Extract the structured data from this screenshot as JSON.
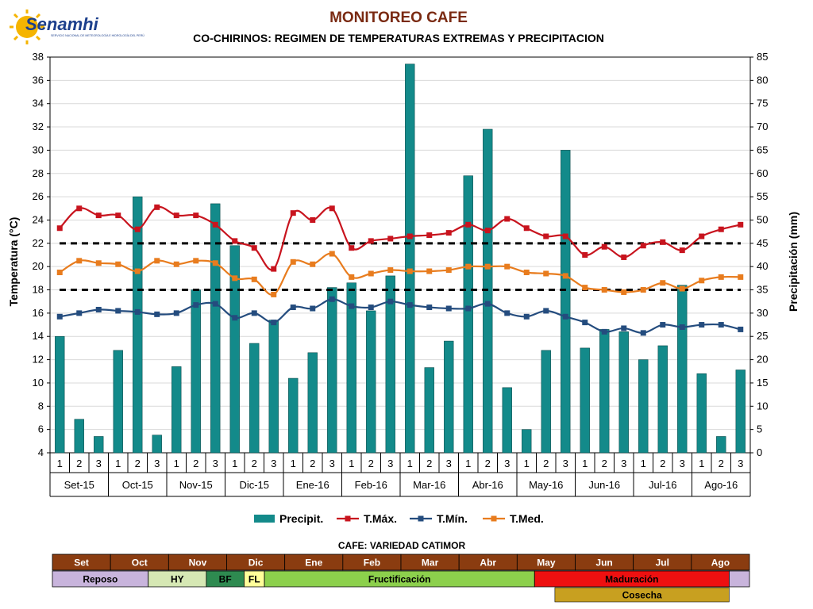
{
  "header": {
    "logo_text": "Senamhi",
    "logo_subtext": "SERVICIO NACIONAL DE METEOROLOGÍA E HIDROLOGÍA DEL PERÚ",
    "title": "MONITOREO CAFE",
    "subtitle": "CO-CHIRINOS: REGIMEN DE TEMPERATURAS EXTREMAS Y PRECIPITACION"
  },
  "colors": {
    "precip": "#138a8a",
    "tmax": "#c8141e",
    "tmin": "#244c7e",
    "tmed": "#e87c1e",
    "threshold": "#000000",
    "title": "#7a2a12"
  },
  "chart_data": {
    "type": "bar",
    "title": "CO-CHIRINOS: REGIMEN DE TEMPERATURAS EXTREMAS Y PRECIPITACION",
    "xlabel": "",
    "ylabel": "Temperatura (°C)",
    "y2label": "Precipitación (mm)",
    "ylim": [
      4,
      38
    ],
    "y2lim": [
      0,
      85
    ],
    "yticks": [
      4,
      6,
      8,
      10,
      12,
      14,
      16,
      18,
      20,
      22,
      24,
      26,
      28,
      30,
      32,
      34,
      36,
      38
    ],
    "y2ticks": [
      0,
      5,
      10,
      15,
      20,
      25,
      30,
      35,
      40,
      45,
      50,
      55,
      60,
      65,
      70,
      75,
      80,
      85
    ],
    "grid": true,
    "legend_position": "bottom",
    "months": [
      "Set-15",
      "Oct-15",
      "Nov-15",
      "Dic-15",
      "Ene-16",
      "Feb-16",
      "Mar-16",
      "Abr-16",
      "May-16",
      "Jun-16",
      "Jul-16",
      "Ago-16"
    ],
    "dekads": [
      "1",
      "2",
      "3"
    ],
    "thresholds": [
      22,
      18
    ],
    "series": [
      {
        "name": "Precipit.",
        "type": "bar",
        "axis": "right",
        "values": [
          25,
          7.2,
          3.5,
          22,
          55,
          3.8,
          18.5,
          35,
          53.5,
          44.5,
          23.5,
          28.5,
          16,
          21.5,
          35.5,
          36.5,
          30.5,
          38,
          83.5,
          18.3,
          24,
          59.5,
          69.5,
          14,
          5,
          22,
          65,
          22.5,
          26.5,
          26,
          20,
          23,
          36,
          17,
          3.5,
          17.8
        ]
      },
      {
        "name": "T.Máx.",
        "type": "line",
        "axis": "left",
        "values": [
          23.3,
          25,
          24.4,
          24.4,
          23.2,
          25.1,
          24.4,
          24.4,
          23.6,
          22.2,
          21.6,
          19.8,
          24.6,
          24.0,
          25.0,
          21.6,
          22.2,
          22.4,
          22.6,
          22.7,
          22.9,
          23.6,
          23.1,
          24.1,
          23.3,
          22.6,
          22.6,
          21.0,
          21.7,
          20.8,
          21.8,
          22.1,
          21.4,
          22.6,
          23.2,
          23.6
        ]
      },
      {
        "name": "T.Mín.",
        "type": "line",
        "axis": "left",
        "values": [
          15.7,
          16.0,
          16.3,
          16.2,
          16.1,
          15.9,
          16.0,
          16.7,
          16.8,
          15.6,
          16.0,
          15.2,
          16.5,
          16.4,
          17.2,
          16.6,
          16.5,
          17.0,
          16.7,
          16.5,
          16.4,
          16.4,
          16.8,
          16.0,
          15.7,
          16.2,
          15.7,
          15.2,
          14.4,
          14.7,
          14.3,
          15.0,
          14.8,
          15.0,
          15.0,
          14.6
        ]
      },
      {
        "name": "T.Med.",
        "type": "line",
        "axis": "left",
        "values": [
          19.5,
          20.5,
          20.3,
          20.2,
          19.6,
          20.5,
          20.2,
          20.5,
          20.3,
          19.0,
          18.9,
          17.6,
          20.4,
          20.2,
          21.1,
          19.1,
          19.4,
          19.7,
          19.6,
          19.6,
          19.7,
          20.0,
          20.0,
          20.0,
          19.5,
          19.4,
          19.2,
          18.2,
          18.0,
          17.8,
          18.0,
          18.6,
          18.1,
          18.8,
          19.1,
          19.1
        ]
      }
    ]
  },
  "phenology": {
    "title": "CAFE: VARIEDAD CATIMOR",
    "months": [
      "Set",
      "Oct",
      "Nov",
      "Dic",
      "Ene",
      "Feb",
      "Mar",
      "Abr",
      "May",
      "Jun",
      "Jul",
      "Ago"
    ],
    "month_row_color": "#8a3c10",
    "stages": [
      {
        "label": "Reposo",
        "start_month": 0,
        "end_month": 1.65,
        "color": "#c8b4dc"
      },
      {
        "label": "HY",
        "start_month": 1.65,
        "end_month": 2.65,
        "color": "#d6e8b4"
      },
      {
        "label": "BF",
        "start_month": 2.65,
        "end_month": 3.3,
        "color": "#2e8a50"
      },
      {
        "label": "FL",
        "start_month": 3.3,
        "end_month": 3.65,
        "color": "#ffff9a"
      },
      {
        "label": "Fructificación",
        "start_month": 3.65,
        "end_month": 8.3,
        "color": "#8cd04c"
      },
      {
        "label": "Maduración",
        "start_month": 8.3,
        "end_month": 11.65,
        "color": "#ee1010"
      },
      {
        "label": "",
        "start_month": 11.65,
        "end_month": 12,
        "color": "#c8b4dc"
      }
    ],
    "harvest": {
      "label": "Cosecha",
      "start_month": 8.65,
      "end_month": 11.65,
      "color": "#c8a020"
    }
  }
}
